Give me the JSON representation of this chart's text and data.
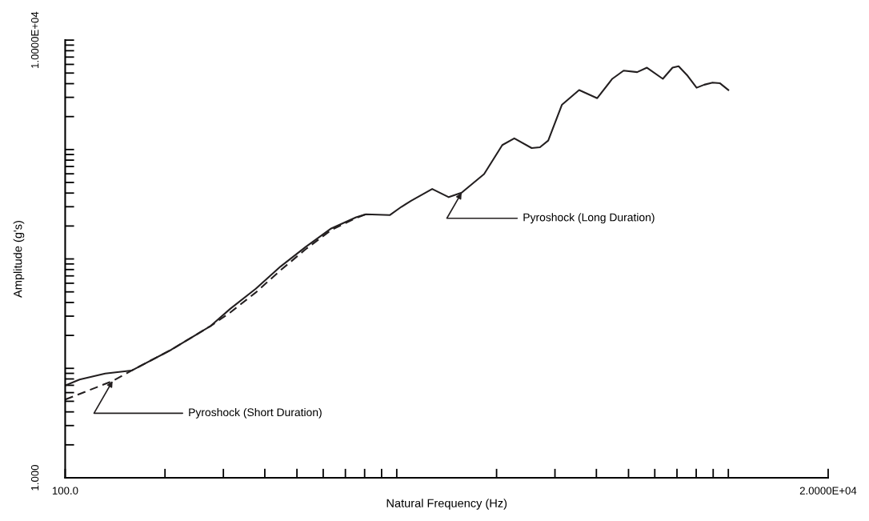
{
  "chart_data": {
    "type": "line",
    "xlabel": "Natural Frequency (Hz)",
    "ylabel": "Amplitude (g's)",
    "log": "xy",
    "grid": false,
    "legend": false,
    "xlim": [
      100,
      20000
    ],
    "ylim": [
      1,
      10000
    ],
    "xticks": [
      {
        "value": 100,
        "label": "100.0"
      },
      {
        "value": 200,
        "label": null
      },
      {
        "value": 300,
        "label": null
      },
      {
        "value": 400,
        "label": null
      },
      {
        "value": 500,
        "label": null
      },
      {
        "value": 600,
        "label": null
      },
      {
        "value": 700,
        "label": null
      },
      {
        "value": 800,
        "label": null
      },
      {
        "value": 900,
        "label": null
      },
      {
        "value": 1000,
        "label": null
      },
      {
        "value": 2000,
        "label": null
      },
      {
        "value": 3000,
        "label": null
      },
      {
        "value": 4000,
        "label": null
      },
      {
        "value": 5000,
        "label": null
      },
      {
        "value": 6000,
        "label": null
      },
      {
        "value": 7000,
        "label": null
      },
      {
        "value": 8000,
        "label": null
      },
      {
        "value": 9000,
        "label": null
      },
      {
        "value": 10000,
        "label": null
      },
      {
        "value": 20000,
        "label": "2.0000E+04"
      }
    ],
    "yticks": [
      {
        "value": 1,
        "label": "1.000"
      },
      {
        "value": 2,
        "label": null
      },
      {
        "value": 3,
        "label": null
      },
      {
        "value": 4,
        "label": null
      },
      {
        "value": 5,
        "label": null
      },
      {
        "value": 6,
        "label": null
      },
      {
        "value": 7,
        "label": null
      },
      {
        "value": 8,
        "label": null
      },
      {
        "value": 9,
        "label": null
      },
      {
        "value": 10,
        "label": null
      },
      {
        "value": 20,
        "label": null
      },
      {
        "value": 30,
        "label": null
      },
      {
        "value": 40,
        "label": null
      },
      {
        "value": 50,
        "label": null
      },
      {
        "value": 60,
        "label": null
      },
      {
        "value": 70,
        "label": null
      },
      {
        "value": 80,
        "label": null
      },
      {
        "value": 90,
        "label": null
      },
      {
        "value": 100,
        "label": null
      },
      {
        "value": 200,
        "label": null
      },
      {
        "value": 300,
        "label": null
      },
      {
        "value": 400,
        "label": null
      },
      {
        "value": 500,
        "label": null
      },
      {
        "value": 600,
        "label": null
      },
      {
        "value": 700,
        "label": null
      },
      {
        "value": 800,
        "label": null
      },
      {
        "value": 900,
        "label": null
      },
      {
        "value": 1000,
        "label": null
      },
      {
        "value": 2000,
        "label": null
      },
      {
        "value": 3000,
        "label": null
      },
      {
        "value": 4000,
        "label": null
      },
      {
        "value": 5000,
        "label": null
      },
      {
        "value": 6000,
        "label": null
      },
      {
        "value": 7000,
        "label": null
      },
      {
        "value": 8000,
        "label": null
      },
      {
        "value": 9000,
        "label": null
      },
      {
        "value": 10000,
        "label": "1.0000E+04"
      }
    ],
    "series": [
      {
        "color": "#231f20",
        "line_style": "solid",
        "x": [
          100,
          110.5,
          132,
          158.5,
          209,
          274.6,
          314.6,
          375.8,
          446.7,
          530.9,
          634.5,
          754,
          807,
          954,
          1032,
          1105,
          1279,
          1435,
          1569,
          1834,
          2081,
          2262,
          2552,
          2703,
          2863,
          3147,
          3548,
          4023,
          4467,
          4832,
          5309,
          5683,
          6345,
          6788,
          7079,
          7540,
          8023,
          8458,
          8960,
          9441,
          10000
        ],
        "values": [
          6.97,
          7.91,
          8.96,
          9.54,
          14.8,
          24.4,
          35.0,
          53.4,
          85.5,
          128.5,
          190,
          240,
          256,
          252,
          299,
          340,
          436,
          367,
          403,
          596,
          1099,
          1265,
          1032,
          1048,
          1207,
          2560,
          3500,
          2946,
          4429,
          5260,
          5100,
          5600,
          4429,
          5600,
          5780,
          4710,
          3670,
          3910,
          4093,
          4030,
          3500
        ]
      },
      {
        "color": "#231f20",
        "line_style": "dashed",
        "x": [
          100,
          139,
          158.5,
          209,
          274.6,
          314.6,
          375.8,
          446.7,
          530.9,
          634.5,
          754,
          807
        ],
        "values": [
          5.18,
          7.66,
          9.54,
          14.8,
          24.4,
          32.4,
          49.4,
          79.1,
          122.5,
          184,
          237,
          256
        ]
      }
    ],
    "annotations": [
      {
        "text": "Pyroshock (Short Duration)",
        "x": 139,
        "y": 7.66
      },
      {
        "text": "Pyroshock (Long Duration)",
        "x": 1569,
        "y": 403
      }
    ]
  }
}
